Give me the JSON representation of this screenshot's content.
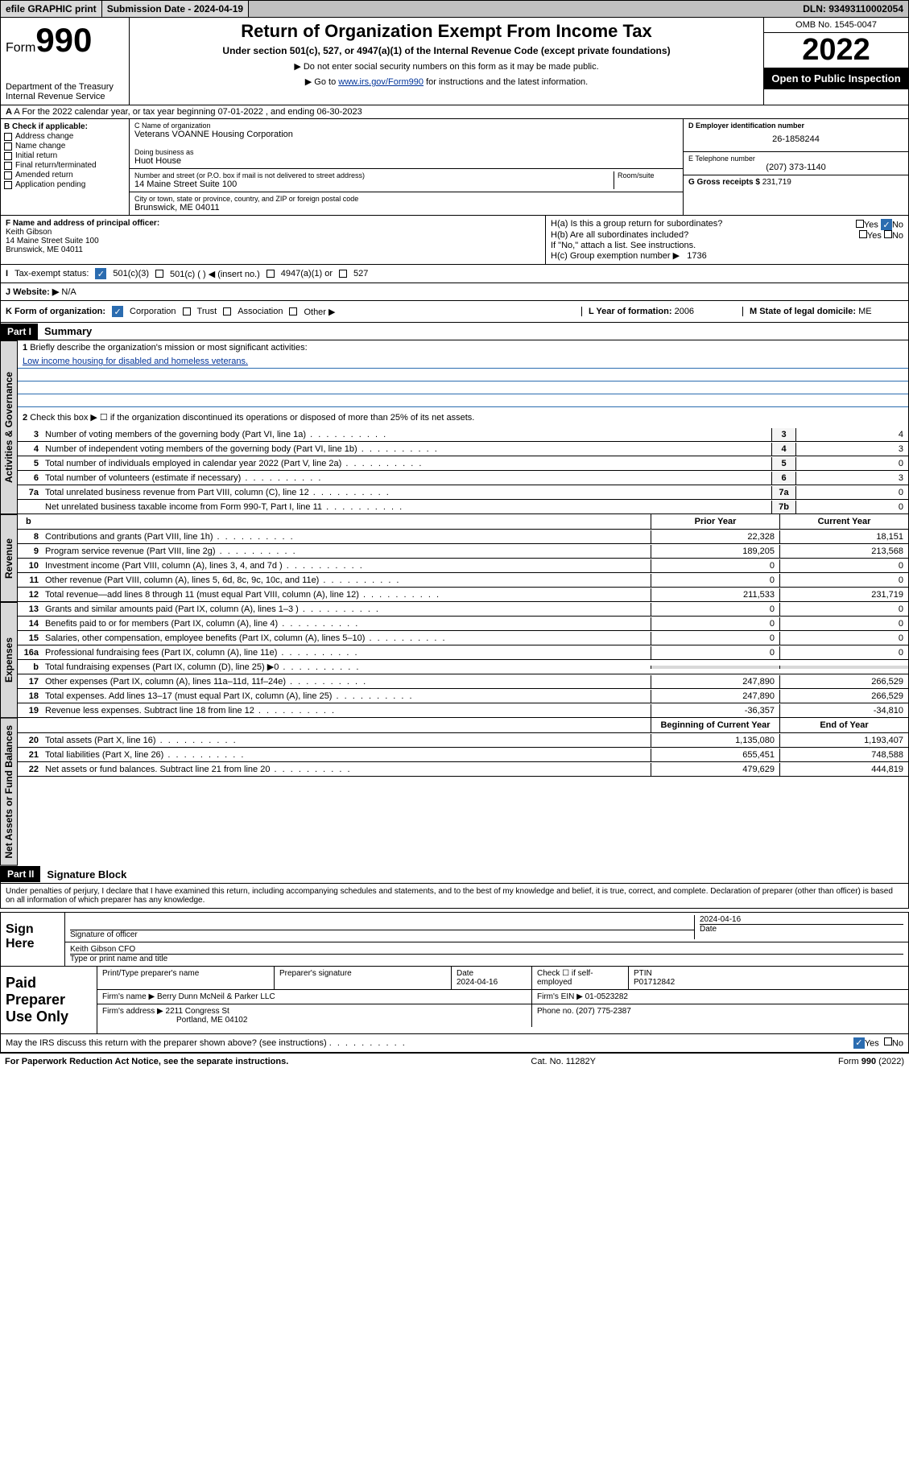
{
  "topbar": {
    "efile": "efile GRAPHIC print",
    "submission": "Submission Date - 2024-04-19",
    "dln": "DLN: 93493110002054"
  },
  "header": {
    "form_label": "Form",
    "form_num": "990",
    "dept": "Department of the Treasury",
    "irs": "Internal Revenue Service",
    "title": "Return of Organization Exempt From Income Tax",
    "subtitle": "Under section 501(c), 527, or 4947(a)(1) of the Internal Revenue Code (except private foundations)",
    "note1": "▶ Do not enter social security numbers on this form as it may be made public.",
    "note2_pre": "▶ Go to ",
    "note2_link": "www.irs.gov/Form990",
    "note2_post": " for instructions and the latest information.",
    "omb": "OMB No. 1545-0047",
    "year": "2022",
    "open": "Open to Public Inspection"
  },
  "section_a": "A For the 2022 calendar year, or tax year beginning 07-01-2022   , and ending 06-30-2023",
  "col_b": {
    "hdr": "B Check if applicable:",
    "items": [
      "Address change",
      "Name change",
      "Initial return",
      "Final return/terminated",
      "Amended return",
      "Application pending"
    ]
  },
  "col_c": {
    "name_label": "C Name of organization",
    "name": "Veterans VOANNE Housing Corporation",
    "dba_label": "Doing business as",
    "dba": "Huot House",
    "street_label": "Number and street (or P.O. box if mail is not delivered to street address)",
    "room_label": "Room/suite",
    "street": "14 Maine Street Suite 100",
    "city_label": "City or town, state or province, country, and ZIP or foreign postal code",
    "city": "Brunswick, ME  04011"
  },
  "col_d": {
    "ein_label": "D Employer identification number",
    "ein": "26-1858244",
    "phone_label": "E Telephone number",
    "phone": "(207) 373-1140",
    "gross_label": "G Gross receipts $",
    "gross": "231,719"
  },
  "row_f": {
    "label": "F  Name and address of principal officer:",
    "name": "Keith Gibson",
    "addr1": "14 Maine Street Suite 100",
    "addr2": "Brunswick, ME  04011"
  },
  "row_h": {
    "ha": "H(a)  Is this a group return for subordinates?",
    "hb": "H(b)  Are all subordinates included?",
    "hb_note": "If \"No,\" attach a list. See instructions.",
    "hc": "H(c)  Group exemption number ▶",
    "hc_val": "1736",
    "yes": "Yes",
    "no": "No"
  },
  "row_i": {
    "label": "Tax-exempt status:",
    "opt1": "501(c)(3)",
    "opt2": "501(c) (  ) ◀ (insert no.)",
    "opt3": "4947(a)(1) or",
    "opt4": "527"
  },
  "row_j": {
    "label": "J   Website: ▶",
    "val": "N/A"
  },
  "row_k": {
    "label": "K Form of organization:",
    "opts": [
      "Corporation",
      "Trust",
      "Association",
      "Other ▶"
    ],
    "l_label": "L Year of formation:",
    "l_val": "2006",
    "m_label": "M State of legal domicile:",
    "m_val": "ME"
  },
  "part1": {
    "hdr": "Part I",
    "title": "Summary"
  },
  "tabs": {
    "gov": "Activities & Governance",
    "rev": "Revenue",
    "exp": "Expenses",
    "net": "Net Assets or Fund Balances"
  },
  "q1": {
    "num": "1",
    "text": "Briefly describe the organization's mission or most significant activities:",
    "mission": "Low income housing for disabled and homeless veterans."
  },
  "q2": {
    "num": "2",
    "text": "Check this box ▶ ☐  if the organization discontinued its operations or disposed of more than 25% of its net assets."
  },
  "lines": [
    {
      "n": "3",
      "t": "Number of voting members of the governing body (Part VI, line 1a)",
      "box": "3",
      "v": "4"
    },
    {
      "n": "4",
      "t": "Number of independent voting members of the governing body (Part VI, line 1b)",
      "box": "4",
      "v": "3"
    },
    {
      "n": "5",
      "t": "Total number of individuals employed in calendar year 2022 (Part V, line 2a)",
      "box": "5",
      "v": "0"
    },
    {
      "n": "6",
      "t": "Total number of volunteers (estimate if necessary)",
      "box": "6",
      "v": "3"
    },
    {
      "n": "7a",
      "t": "Total unrelated business revenue from Part VIII, column (C), line 12",
      "box": "7a",
      "v": "0"
    },
    {
      "n": "",
      "t": "Net unrelated business taxable income from Form 990-T, Part I, line 11",
      "box": "7b",
      "v": "0"
    }
  ],
  "cols": {
    "b": "b",
    "prior": "Prior Year",
    "current": "Current Year"
  },
  "rev_lines": [
    {
      "n": "8",
      "t": "Contributions and grants (Part VIII, line 1h)",
      "p": "22,328",
      "c": "18,151"
    },
    {
      "n": "9",
      "t": "Program service revenue (Part VIII, line 2g)",
      "p": "189,205",
      "c": "213,568"
    },
    {
      "n": "10",
      "t": "Investment income (Part VIII, column (A), lines 3, 4, and 7d )",
      "p": "0",
      "c": "0"
    },
    {
      "n": "11",
      "t": "Other revenue (Part VIII, column (A), lines 5, 6d, 8c, 9c, 10c, and 11e)",
      "p": "0",
      "c": "0"
    },
    {
      "n": "12",
      "t": "Total revenue—add lines 8 through 11 (must equal Part VIII, column (A), line 12)",
      "p": "211,533",
      "c": "231,719"
    }
  ],
  "exp_lines": [
    {
      "n": "13",
      "t": "Grants and similar amounts paid (Part IX, column (A), lines 1–3 )",
      "p": "0",
      "c": "0"
    },
    {
      "n": "14",
      "t": "Benefits paid to or for members (Part IX, column (A), line 4)",
      "p": "0",
      "c": "0"
    },
    {
      "n": "15",
      "t": "Salaries, other compensation, employee benefits (Part IX, column (A), lines 5–10)",
      "p": "0",
      "c": "0"
    },
    {
      "n": "16a",
      "t": "Professional fundraising fees (Part IX, column (A), line 11e)",
      "p": "0",
      "c": "0"
    },
    {
      "n": "b",
      "t": "Total fundraising expenses (Part IX, column (D), line 25) ▶0",
      "p": "",
      "c": ""
    },
    {
      "n": "17",
      "t": "Other expenses (Part IX, column (A), lines 11a–11d, 11f–24e)",
      "p": "247,890",
      "c": "266,529"
    },
    {
      "n": "18",
      "t": "Total expenses. Add lines 13–17 (must equal Part IX, column (A), line 25)",
      "p": "247,890",
      "c": "266,529"
    },
    {
      "n": "19",
      "t": "Revenue less expenses. Subtract line 18 from line 12",
      "p": "-36,357",
      "c": "-34,810"
    }
  ],
  "net_cols": {
    "beg": "Beginning of Current Year",
    "end": "End of Year"
  },
  "net_lines": [
    {
      "n": "20",
      "t": "Total assets (Part X, line 16)",
      "p": "1,135,080",
      "c": "1,193,407"
    },
    {
      "n": "21",
      "t": "Total liabilities (Part X, line 26)",
      "p": "655,451",
      "c": "748,588"
    },
    {
      "n": "22",
      "t": "Net assets or fund balances. Subtract line 21 from line 20",
      "p": "479,629",
      "c": "444,819"
    }
  ],
  "part2": {
    "hdr": "Part II",
    "title": "Signature Block"
  },
  "sig": {
    "perjury": "Under penalties of perjury, I declare that I have examined this return, including accompanying schedules and statements, and to the best of my knowledge and belief, it is true, correct, and complete. Declaration of preparer (other than officer) is based on all information of which preparer has any knowledge.",
    "sign_here": "Sign Here",
    "sig_officer": "Signature of officer",
    "date": "Date",
    "date_val": "2024-04-16",
    "name": "Keith Gibson CFO",
    "type_name": "Type or print name and title"
  },
  "paid": {
    "label": "Paid Preparer Use Only",
    "h1": "Print/Type preparer's name",
    "h2": "Preparer's signature",
    "h3": "Date",
    "h3v": "2024-04-16",
    "h4": "Check ☐ if self-employed",
    "h5": "PTIN",
    "h5v": "P01712842",
    "firm_label": "Firm's name    ▶",
    "firm": "Berry Dunn McNeil & Parker LLC",
    "ein_label": "Firm's EIN ▶",
    "ein": "01-0523282",
    "addr_label": "Firm's address ▶",
    "addr1": "2211 Congress St",
    "addr2": "Portland, ME  04102",
    "phone_label": "Phone no.",
    "phone": "(207) 775-2387"
  },
  "discuss": {
    "text": "May the IRS discuss this return with the preparer shown above? (see instructions)",
    "yes": "Yes",
    "no": "No"
  },
  "footer": {
    "left": "For Paperwork Reduction Act Notice, see the separate instructions.",
    "mid": "Cat. No. 11282Y",
    "right_pre": "Form ",
    "right_bold": "990",
    "right_post": " (2022)"
  }
}
